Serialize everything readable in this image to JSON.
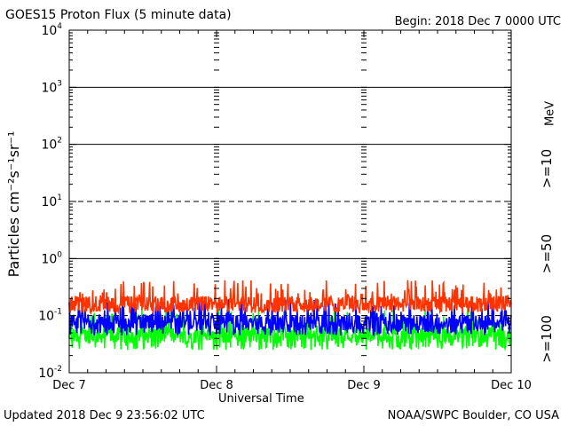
{
  "header": {
    "title": "GOES15 Proton Flux (5 minute data)",
    "begin": "Begin: 2018 Dec 7 0000 UTC"
  },
  "footer": {
    "updated": "Updated 2018 Dec  9 23:56:02 UTC",
    "credit": "NOAA/SWPC Boulder, CO USA"
  },
  "chart_data": {
    "type": "line",
    "title": "GOES15 Proton Flux (5 minute data)",
    "xlabel": "Universal Time",
    "ylabel": "Particles cm⁻²s⁻¹sr⁻¹",
    "yscale": "log",
    "ylim": [
      0.01,
      10000
    ],
    "xlim": [
      "Dec 7",
      "Dec 10"
    ],
    "x_ticks": [
      "Dec 7",
      "Dec 8",
      "Dec 9",
      "Dec 10"
    ],
    "y_ticks": [
      {
        "base": "10",
        "exp": "-2"
      },
      {
        "base": "10",
        "exp": "-1"
      },
      {
        "base": "10",
        "exp": "0"
      },
      {
        "base": "10",
        "exp": "1"
      },
      {
        "base": "10",
        "exp": "2"
      },
      {
        "base": "10",
        "exp": "3"
      },
      {
        "base": "10",
        "exp": "4"
      }
    ],
    "grid": "horizontal lines at decades, dashed at 10^1 and 10^-1",
    "legend_unit": "MeV",
    "series": [
      {
        "name": ">=10",
        "color": "#ff3300",
        "typical_value": 0.16,
        "range": [
          0.11,
          0.42
        ]
      },
      {
        "name": ">=50",
        "color": "#0000ff",
        "typical_value": 0.075,
        "range": [
          0.045,
          0.2
        ]
      },
      {
        "name": ">=100",
        "color": "#00ff00",
        "typical_value": 0.045,
        "range": [
          0.025,
          0.14
        ]
      }
    ]
  }
}
